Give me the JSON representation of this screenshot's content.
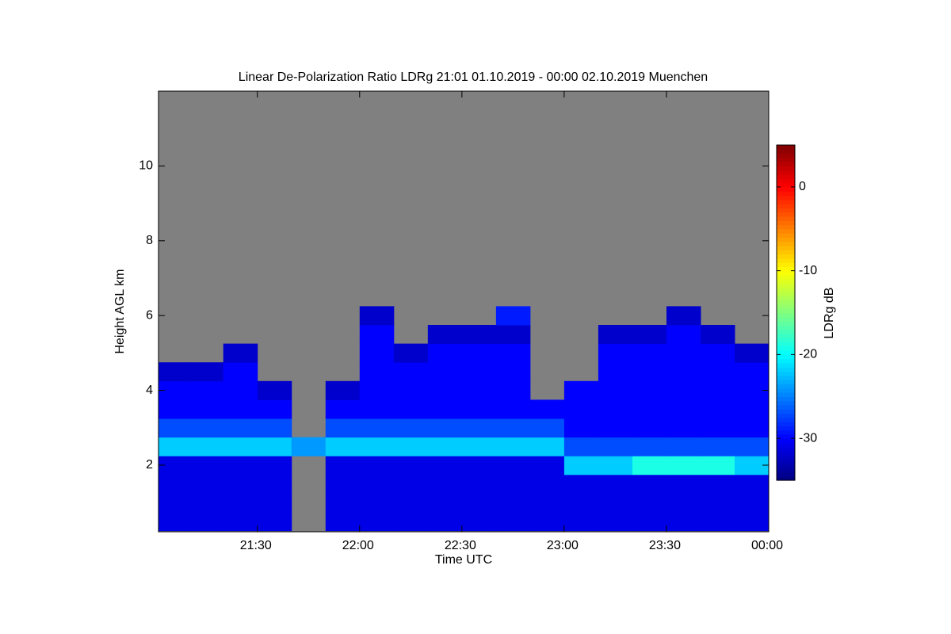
{
  "chart_data": {
    "type": "heatmap",
    "title": "Linear De-Polarization Ratio LDRg   21:01 01.10.2019 - 00:00 02.10.2019 Muenchen",
    "x_label": "Time UTC",
    "y_label": "Height AGL km",
    "colorbar_label": "LDRg dB",
    "colormap": "jet",
    "missing_color": "#808080",
    "xlim": [
      1,
      180
    ],
    "xticks": [
      {
        "value": 30,
        "label": "21:30"
      },
      {
        "value": 60,
        "label": "22:00"
      },
      {
        "value": 90,
        "label": "22:30"
      },
      {
        "value": 120,
        "label": "23:00"
      },
      {
        "value": 150,
        "label": "23:30"
      },
      {
        "value": 180,
        "label": "00:00"
      }
    ],
    "ylim": [
      0.22,
      12
    ],
    "yticks": [
      2,
      4,
      6,
      8,
      10
    ],
    "clim": [
      -35,
      5
    ],
    "cticks": [
      0,
      -10,
      -20,
      -30
    ],
    "x": [
      5,
      15,
      25,
      35,
      45,
      55,
      65,
      75,
      85,
      95,
      105,
      115,
      125,
      135,
      145,
      155,
      165,
      175
    ],
    "y": [
      0.5,
      1,
      1.5,
      2,
      2.5,
      3,
      3.5,
      4,
      4.5,
      5,
      5.5,
      6
    ],
    "z": [
      [
        -31,
        -31,
        -31,
        -31,
        null,
        -31,
        -31,
        -31,
        -31,
        -31,
        -31,
        -31,
        -31,
        -31,
        -31,
        -31,
        -31,
        -31
      ],
      [
        -31,
        -31,
        -31,
        -31,
        null,
        -31,
        -31,
        -31,
        -31,
        -31,
        -31,
        -31,
        -31,
        -31,
        -31,
        -31,
        -31,
        -31
      ],
      [
        -31,
        -31,
        -31,
        -31,
        null,
        -31,
        -31,
        -31,
        -31,
        -31,
        -31,
        -31,
        -31,
        -31,
        -31,
        -31,
        -31,
        -31
      ],
      [
        -31,
        -31,
        -31,
        -31,
        null,
        -31,
        -31,
        -31,
        -31,
        -31,
        -31,
        -31,
        -22,
        -22,
        -19,
        -19,
        -19,
        -22
      ],
      [
        -22,
        -22,
        -22,
        -22,
        -24,
        -22,
        -22,
        -22,
        -22,
        -22,
        -22,
        -22,
        -27,
        -27,
        -27,
        -27,
        -27,
        -27
      ],
      [
        -27,
        -27,
        -27,
        -27,
        null,
        -27,
        -27,
        -27,
        -27,
        -27,
        -27,
        -27,
        -30,
        -30,
        -30,
        -30,
        -30,
        -30
      ],
      [
        -30,
        -30,
        -30,
        -30,
        null,
        -30,
        -30,
        -30,
        -30,
        -30,
        -30,
        -30,
        -30,
        -30,
        -30,
        -30,
        -30,
        -30
      ],
      [
        -30,
        -30,
        -30,
        -32,
        null,
        -32,
        -30,
        -30,
        -30,
        -30,
        -30,
        null,
        -30,
        -30,
        -30,
        -30,
        -30,
        -30
      ],
      [
        -32,
        -32,
        -30,
        null,
        null,
        null,
        -30,
        -30,
        -30,
        -30,
        -30,
        null,
        null,
        -30,
        -30,
        -30,
        -30,
        -30
      ],
      [
        null,
        null,
        -32,
        null,
        null,
        null,
        -30,
        -32,
        -30,
        -30,
        -30,
        null,
        null,
        -30,
        -30,
        -30,
        -30,
        -32
      ],
      [
        null,
        null,
        null,
        null,
        null,
        null,
        -30,
        null,
        -32,
        -32,
        -32,
        null,
        null,
        -32,
        -32,
        -30,
        -32,
        null
      ],
      [
        null,
        null,
        null,
        null,
        null,
        null,
        -32,
        null,
        null,
        null,
        -29,
        null,
        null,
        null,
        null,
        -32,
        null,
        null
      ]
    ]
  }
}
